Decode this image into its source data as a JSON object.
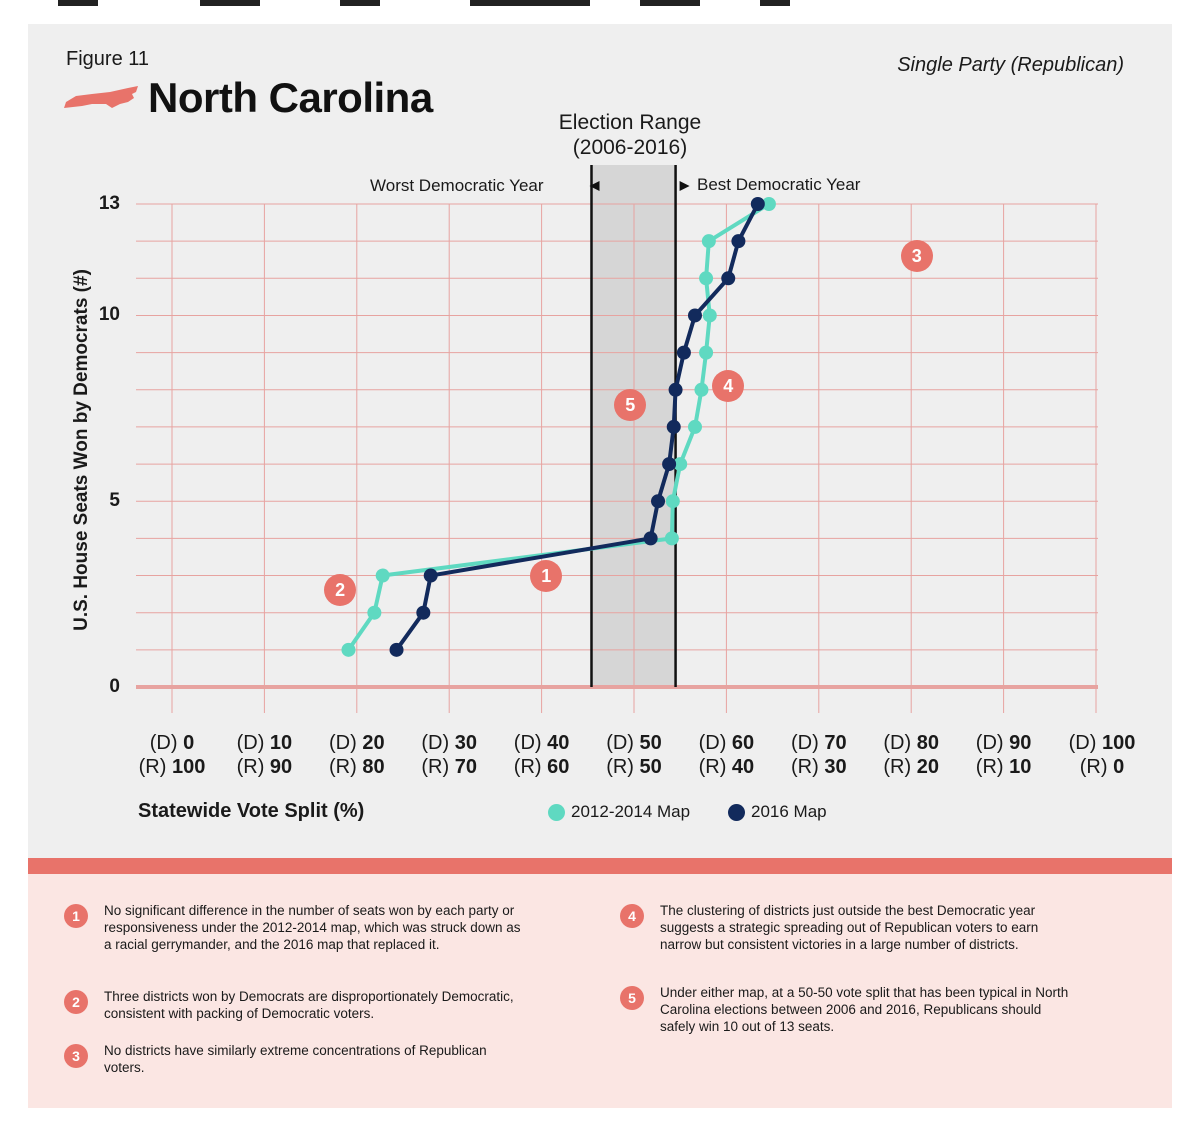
{
  "figure_label": "Figure 11",
  "title": "North Carolina",
  "subtitle": "Single Party (Republican)",
  "election_range": {
    "line1": "Election Range",
    "line2": "(2006-2016)"
  },
  "worst_label": "Worst Democratic Year",
  "best_label": "Best Democratic Year",
  "colors": {
    "map_2012": "#5fd9c1",
    "map_2016": "#122a5c",
    "accent": "#e8736a",
    "grid": "#e7a3a0",
    "range_fill": "#d6d6d6"
  },
  "chart_data": {
    "type": "line",
    "xlabel": "Statewide Vote Split (%)",
    "ylabel": "U.S. House Seats Won by Democrats (#)",
    "xlim": [
      0,
      100
    ],
    "ylim": [
      0,
      13
    ],
    "y_ticks": [
      "0",
      "5",
      "10",
      "13"
    ],
    "x_ticks": [
      {
        "d": "(D)",
        "dv": "0",
        "r": "(R)",
        "rv": "100"
      },
      {
        "d": "(D)",
        "dv": "10",
        "r": "(R)",
        "rv": "90"
      },
      {
        "d": "(D)",
        "dv": "20",
        "r": "(R)",
        "rv": "80"
      },
      {
        "d": "(D)",
        "dv": "30",
        "r": "(R)",
        "rv": "70"
      },
      {
        "d": "(D)",
        "dv": "40",
        "r": "(R)",
        "rv": "60"
      },
      {
        "d": "(D)",
        "dv": "50",
        "r": "(R)",
        "rv": "50"
      },
      {
        "d": "(D)",
        "dv": "60",
        "r": "(R)",
        "rv": "40"
      },
      {
        "d": "(D)",
        "dv": "70",
        "r": "(R)",
        "rv": "30"
      },
      {
        "d": "(D)",
        "dv": "80",
        "r": "(R)",
        "rv": "20"
      },
      {
        "d": "(D)",
        "dv": "90",
        "r": "(R)",
        "rv": "10"
      },
      {
        "d": "(D)",
        "dv": "100",
        "r": "(R)",
        "rv": "0"
      }
    ],
    "election_range": [
      45.4,
      54.5
    ],
    "series": [
      {
        "name": "2012-2014 Map",
        "points": [
          [
            19.1,
            1
          ],
          [
            21.9,
            2
          ],
          [
            22.8,
            3
          ],
          [
            54.1,
            4
          ],
          [
            54.2,
            5
          ],
          [
            55.0,
            6
          ],
          [
            56.6,
            7
          ],
          [
            57.3,
            8
          ],
          [
            57.8,
            9
          ],
          [
            58.2,
            10
          ],
          [
            57.8,
            11
          ],
          [
            58.1,
            12
          ],
          [
            64.6,
            13
          ]
        ]
      },
      {
        "name": "2016 Map",
        "points": [
          [
            24.3,
            1
          ],
          [
            27.2,
            2
          ],
          [
            28.0,
            3
          ],
          [
            51.8,
            4
          ],
          [
            52.6,
            5
          ],
          [
            53.8,
            6
          ],
          [
            54.3,
            7
          ],
          [
            54.5,
            8
          ],
          [
            55.4,
            9
          ],
          [
            56.6,
            10
          ],
          [
            60.2,
            11
          ],
          [
            61.3,
            12
          ],
          [
            63.4,
            13
          ]
        ]
      }
    ],
    "callouts": [
      {
        "label": "1",
        "x": 40.5,
        "y": 3
      },
      {
        "label": "2",
        "x": 18.2,
        "y": 2.6
      },
      {
        "label": "3",
        "x": 80.6,
        "y": 11.6
      },
      {
        "label": "4",
        "x": 60.2,
        "y": 8.1
      },
      {
        "label": "5",
        "x": 49.6,
        "y": 7.6
      }
    ]
  },
  "notes": [
    {
      "num": "1",
      "text": "No significant difference in the number of seats won by each party or responsiveness under the 2012-2014 map, which was struck down as a racial gerrymander, and the 2016 map that replaced it."
    },
    {
      "num": "2",
      "text": "Three districts won by Democrats are disproportionately Democratic, consistent with packing of Democratic voters."
    },
    {
      "num": "3",
      "text": "No districts have similarly extreme concentrations of Republican voters."
    },
    {
      "num": "4",
      "text": "The clustering of districts just outside the best Democratic year suggests a strategic spreading out of Republican voters to earn narrow but consistent victories in a large number of districts."
    },
    {
      "num": "5",
      "text": "Under either map, at a 50-50 vote split that has been typical in North Carolina elections between 2006 and 2016, Republicans should safely win 10 out of 13 seats."
    }
  ]
}
